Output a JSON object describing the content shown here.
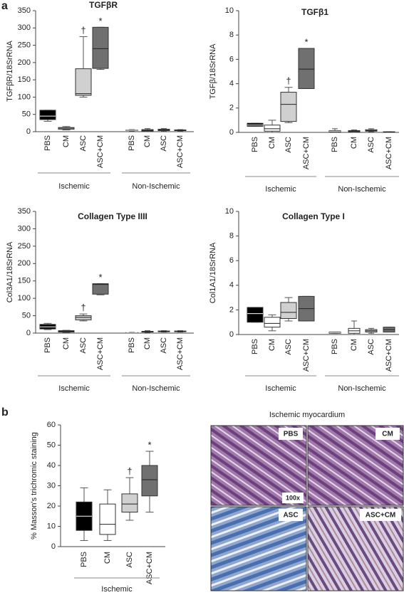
{
  "panel_labels": [
    "a",
    "b"
  ],
  "chart_data": [
    {
      "type": "box",
      "title": "TGFβR",
      "y_label": "TGFβR/18SrRNA",
      "ylim": [
        0,
        350
      ],
      "yticks": [
        0,
        50,
        100,
        150,
        200,
        250,
        300,
        350
      ],
      "categories": [
        "PBS",
        "CM",
        "ASC",
        "ASC+CM",
        "PBS",
        "CM",
        "ASC",
        "ASC+CM"
      ],
      "groups": [
        "Ischemic",
        "Non-Ischemic"
      ],
      "boxes": [
        {
          "color": "#000000",
          "min": 30,
          "q1": 35,
          "median": 45,
          "q3": 62,
          "max": 62
        },
        {
          "color": "#ffffff",
          "min": 5,
          "q1": 7,
          "median": 10,
          "q3": 12,
          "max": 15
        },
        {
          "color": "#d0d0d0",
          "min": 100,
          "q1": 105,
          "median": 110,
          "q3": 182,
          "max": 275,
          "mark": "†"
        },
        {
          "color": "#707070",
          "min": 180,
          "q1": 183,
          "median": 240,
          "q3": 302,
          "max": 302,
          "mark": "*"
        },
        {
          "color": "#000000",
          "min": 2,
          "q1": 3,
          "median": 4,
          "q3": 5,
          "max": 6
        },
        {
          "color": "#ffffff",
          "min": 1,
          "q1": 2,
          "median": 4,
          "q3": 6,
          "max": 9
        },
        {
          "color": "#d0d0d0",
          "min": 2,
          "q1": 3,
          "median": 5,
          "q3": 7,
          "max": 9
        },
        {
          "color": "#707070",
          "min": 2,
          "q1": 3,
          "median": 4,
          "q3": 5,
          "max": 6
        }
      ]
    },
    {
      "type": "box",
      "title": "TGFβ1",
      "y_label": "TGFβ/18SrRNA",
      "ylim": [
        0,
        10
      ],
      "yticks": [
        0,
        2,
        4,
        6,
        8,
        10
      ],
      "categories": [
        "PBS",
        "CM",
        "ASC",
        "ASC+CM",
        "PBS",
        "CM",
        "ASC",
        "ASC+CM"
      ],
      "groups": [
        "Ischemic",
        "Non-Ischemic"
      ],
      "boxes": [
        {
          "color": "#000000",
          "min": 0.5,
          "q1": 0.5,
          "median": 0.6,
          "q3": 0.75,
          "max": 0.75
        },
        {
          "color": "#ffffff",
          "min": 0,
          "q1": 0.1,
          "median": 0.3,
          "q3": 0.6,
          "max": 1.0
        },
        {
          "color": "#d0d0d0",
          "min": 0.8,
          "q1": 0.9,
          "median": 2.3,
          "q3": 3.3,
          "max": 3.7,
          "mark": "†"
        },
        {
          "color": "#707070",
          "min": 3.6,
          "q1": 3.6,
          "median": 5.2,
          "q3": 6.9,
          "max": 6.9,
          "mark": "*"
        },
        {
          "color": "#000000",
          "min": 0,
          "q1": 0.05,
          "median": 0.1,
          "q3": 0.15,
          "max": 0.3
        },
        {
          "color": "#ffffff",
          "min": 0,
          "q1": 0.05,
          "median": 0.1,
          "q3": 0.15,
          "max": 0.2
        },
        {
          "color": "#d0d0d0",
          "min": 0.05,
          "q1": 0.1,
          "median": 0.15,
          "q3": 0.22,
          "max": 0.3
        },
        {
          "color": "#707070",
          "min": 0,
          "q1": 0.02,
          "median": 0.03,
          "q3": 0.05,
          "max": 0.05
        }
      ]
    },
    {
      "type": "box",
      "title": "Collagen Type IIII",
      "y_label": "Col3A1/18SrRNA",
      "ylim": [
        0,
        350
      ],
      "yticks": [
        0,
        50,
        100,
        150,
        200,
        250,
        300,
        350
      ],
      "categories": [
        "PBS",
        "CM",
        "ASC",
        "ASC+CM",
        "PBS",
        "CM",
        "ASC",
        "ASC+CM"
      ],
      "groups": [
        "Ischemic",
        "Non-Ischemic"
      ],
      "boxes": [
        {
          "color": "#000000",
          "min": 10,
          "q1": 12,
          "median": 18,
          "q3": 25,
          "max": 28
        },
        {
          "color": "#ffffff",
          "min": 2,
          "q1": 3,
          "median": 5,
          "q3": 7,
          "max": 8
        },
        {
          "color": "#d0d0d0",
          "min": 35,
          "q1": 38,
          "median": 45,
          "q3": 50,
          "max": 55,
          "mark": "†"
        },
        {
          "color": "#707070",
          "min": 110,
          "q1": 112,
          "median": 140,
          "q3": 142,
          "max": 142,
          "mark": "*"
        },
        {
          "color": "#000000",
          "min": 1,
          "q1": 1,
          "median": 2,
          "q3": 2,
          "max": 3
        },
        {
          "color": "#ffffff",
          "min": 2,
          "q1": 3,
          "median": 4,
          "q3": 5,
          "max": 7
        },
        {
          "color": "#d0d0d0",
          "min": 3,
          "q1": 4,
          "median": 5,
          "q3": 6,
          "max": 7
        },
        {
          "color": "#707070",
          "min": 3,
          "q1": 4,
          "median": 5,
          "q3": 6,
          "max": 7
        }
      ]
    },
    {
      "type": "box",
      "title": "Collagen Type I",
      "y_label": "Col1A1/18SrRNA",
      "ylim": [
        0,
        10
      ],
      "yticks": [
        0,
        2,
        4,
        6,
        8,
        10
      ],
      "categories": [
        "PBS",
        "CM",
        "ASC",
        "ASC+CM",
        "PBS",
        "CM",
        "ASC",
        "ASC+CM"
      ],
      "groups": [
        "Ischemic",
        "Non-Ischemic"
      ],
      "boxes": [
        {
          "color": "#000000",
          "min": 1.0,
          "q1": 1.0,
          "median": 1.7,
          "q3": 2.2,
          "max": 2.2
        },
        {
          "color": "#ffffff",
          "min": 0.3,
          "q1": 0.6,
          "median": 0.9,
          "q3": 1.4,
          "max": 1.6
        },
        {
          "color": "#d0d0d0",
          "min": 1.1,
          "q1": 1.3,
          "median": 1.8,
          "q3": 2.6,
          "max": 3.0
        },
        {
          "color": "#707070",
          "min": 1.1,
          "q1": 1.1,
          "median": 2.1,
          "q3": 3.1,
          "max": 3.1
        },
        {
          "color": "#000000",
          "min": 0.1,
          "q1": 0.1,
          "median": 0.15,
          "q3": 0.2,
          "max": 0.2
        },
        {
          "color": "#ffffff",
          "min": 0,
          "q1": 0.1,
          "median": 0.3,
          "q3": 0.5,
          "max": 1.1
        },
        {
          "color": "#d0d0d0",
          "min": 0.1,
          "q1": 0.2,
          "median": 0.3,
          "q3": 0.4,
          "max": 0.5
        },
        {
          "color": "#707070",
          "min": 0.2,
          "q1": 0.2,
          "median": 0.4,
          "q3": 0.6,
          "max": 0.6
        }
      ]
    },
    {
      "type": "box",
      "y_label": "% Masson's trichromic staining",
      "ylim": [
        0,
        60
      ],
      "yticks": [
        0,
        10,
        20,
        30,
        40,
        50,
        60
      ],
      "categories": [
        "PBS",
        "CM",
        "ASC",
        "ASC+CM"
      ],
      "groups": [
        "Ischemic"
      ],
      "boxes": [
        {
          "color": "#000000",
          "min": 3,
          "q1": 8,
          "median": 15,
          "q3": 22,
          "max": 29
        },
        {
          "color": "#ffffff",
          "min": 3,
          "q1": 6,
          "median": 11,
          "q3": 21,
          "max": 28
        },
        {
          "color": "#d0d0d0",
          "min": 13,
          "q1": 17,
          "median": 21,
          "q3": 26,
          "max": 34,
          "mark": "†"
        },
        {
          "color": "#707070",
          "min": 17,
          "q1": 25,
          "median": 33,
          "q3": 40,
          "max": 47,
          "mark": "*"
        }
      ]
    }
  ],
  "micrograph": {
    "title": "Ischemic myocardium",
    "panels": [
      "PBS",
      "CM",
      "ASC",
      "ASC+CM"
    ],
    "magnification": "100x"
  }
}
